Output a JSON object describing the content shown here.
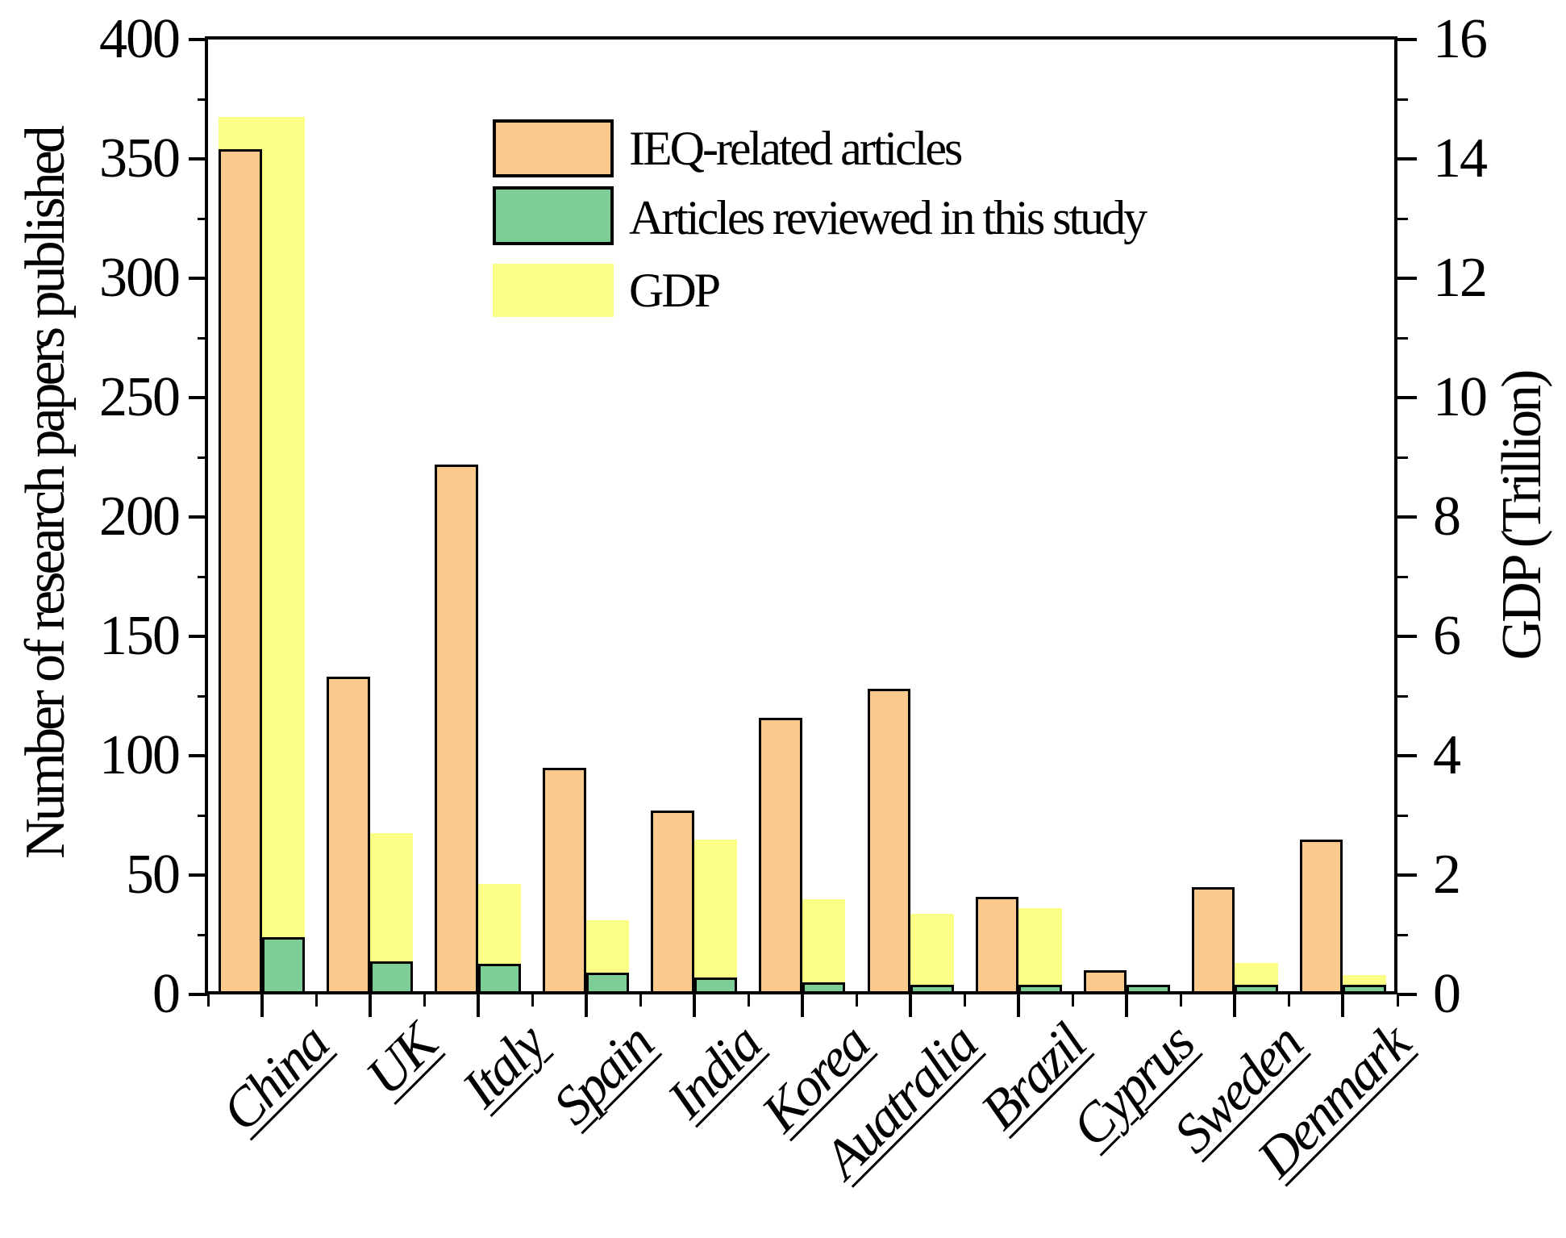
{
  "chart_data": {
    "type": "bar",
    "title": "",
    "categories": [
      "China",
      "UK",
      "Italy",
      "Spain",
      "India",
      "Korea",
      "Auatralia",
      "Brazil",
      "Cyprus",
      "Sweden",
      "Denmark"
    ],
    "series": [
      {
        "name": "IEQ-related articles",
        "axis": "left",
        "color": "#FACA8C",
        "border_color": "#000000",
        "swatch_border": true,
        "values": [
          354,
          133,
          222,
          95,
          77,
          116,
          128,
          41,
          10,
          45,
          65
        ]
      },
      {
        "name": "Articles reviewed in this study",
        "axis": "left",
        "color": "#7CCE96",
        "border_color": "#000000",
        "swatch_border": true,
        "values": [
          24,
          14,
          13,
          9,
          7,
          5,
          4,
          4,
          4,
          4,
          4
        ]
      },
      {
        "name": "GDP",
        "axis": "right",
        "color": "#FCFF85",
        "border_color": null,
        "swatch_border": false,
        "values": [
          14.7,
          2.7,
          1.85,
          1.25,
          2.6,
          1.6,
          1.35,
          1.45,
          0.02,
          0.53,
          0.33
        ]
      }
    ],
    "left_axis": {
      "label": "Number of research papers published",
      "min": 0,
      "max": 400,
      "major_tick_labels": [
        "0",
        "50",
        "100",
        "150",
        "200",
        "250",
        "300",
        "350",
        "400"
      ],
      "minor_step": 25
    },
    "right_axis": {
      "label": "GDP (Trillion)",
      "min": 0,
      "max": 16,
      "major_tick_labels": [
        "0",
        "2",
        "4",
        "6",
        "8",
        "10",
        "12",
        "14",
        "16"
      ],
      "minor_step": 1
    },
    "grid": false,
    "legend_position": "inside-top-left",
    "background_color": "#FFFFFF",
    "axis_color": "#000000"
  }
}
